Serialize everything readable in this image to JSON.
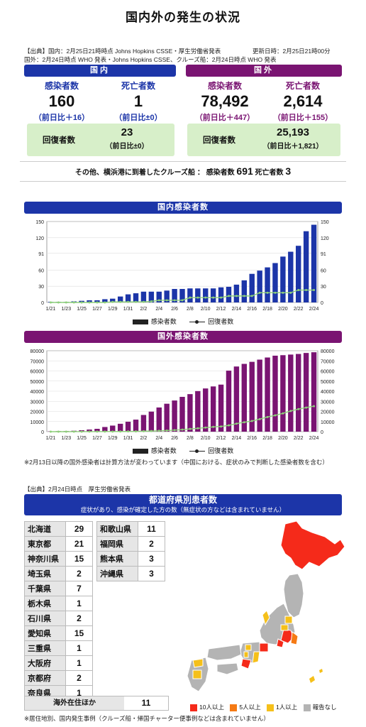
{
  "title": "国内外の発生の状況",
  "source_line1": "【出典】国内：2月25日21時時点 Johns Hopkins CSSE・厚生労働省発表",
  "updated": "更新日時：2月25日21時00分",
  "source_line2": "国外：2月24日時点 WHO 発表・Johns Hopkins CSSE、クルーズ船：2月24日時点 WHO 発表",
  "domestic": {
    "header": "国内",
    "cases_label": "感染者数",
    "cases": "160",
    "cases_diff": "（前日比＋16）",
    "deaths_label": "死亡者数",
    "deaths": "1",
    "deaths_diff": "（前日比±0）",
    "recovered_label": "回復者数",
    "recovered": "23",
    "recovered_diff": "（前日比±0）"
  },
  "overseas": {
    "header": "国外",
    "cases_label": "感染者数",
    "cases": "78,492",
    "cases_diff": "（前日比＋447）",
    "deaths_label": "死亡者数",
    "deaths": "2,614",
    "deaths_diff": "（前日比＋155）",
    "recovered_label": "回復者数",
    "recovered": "25,193",
    "recovered_diff": "（前日比＋1,821）"
  },
  "cruise": {
    "text": "その他、横浜港に到着したクルーズ船 ： 感染者数",
    "cases": "691",
    "deaths_label": "死亡者数",
    "deaths": "3"
  },
  "colors": {
    "blue": "#1c35a8",
    "purple": "#7a1472",
    "recovered_line": "#8ed07a",
    "map_10plus": "#f52a1a",
    "map_5plus": "#f57a14",
    "map_1plus": "#f5c01a",
    "map_none": "#b4b4b4"
  },
  "chart_legend": {
    "cases": "感染者数",
    "recovered": "回復者数"
  },
  "chart_data": [
    {
      "type": "bar",
      "title": "国内感染者数",
      "categories": [
        "1/21",
        "1/22",
        "1/23",
        "1/24",
        "1/25",
        "1/26",
        "1/27",
        "1/28",
        "1/29",
        "1/30",
        "1/31",
        "2/1",
        "2/2",
        "2/3",
        "2/4",
        "2/5",
        "2/6",
        "2/7",
        "2/8",
        "2/9",
        "2/10",
        "2/11",
        "2/12",
        "2/13",
        "2/14",
        "2/15",
        "2/16",
        "2/17",
        "2/18",
        "2/19",
        "2/20",
        "2/21",
        "2/22",
        "2/23",
        "2/24"
      ],
      "tick_labels": [
        "1/21",
        "1/23",
        "1/25",
        "1/27",
        "1/29",
        "1/31",
        "2/2",
        "2/4",
        "2/6",
        "2/8",
        "2/10",
        "2/12",
        "2/14",
        "2/16",
        "2/18",
        "2/20",
        "2/22",
        "2/24"
      ],
      "series": [
        {
          "name": "感染者数",
          "type": "bar",
          "values": [
            1,
            1,
            1,
            2,
            3,
            4,
            4,
            6,
            7,
            11,
            15,
            17,
            20,
            20,
            20,
            22,
            25,
            25,
            26,
            26,
            26,
            26,
            28,
            29,
            33,
            41,
            53,
            59,
            65,
            73,
            85,
            94,
            105,
            132,
            144
          ]
        },
        {
          "name": "回復者数",
          "type": "line",
          "values": [
            0,
            0,
            0,
            0,
            0,
            0,
            0,
            0,
            1,
            1,
            1,
            1,
            1,
            2,
            4,
            4,
            4,
            4,
            9,
            9,
            9,
            9,
            9,
            12,
            12,
            12,
            12,
            18,
            18,
            18,
            18,
            18,
            23,
            23,
            23
          ]
        }
      ],
      "yticks": [
        0,
        30,
        60,
        91,
        120,
        150
      ],
      "ylim": [
        0,
        150
      ]
    },
    {
      "type": "bar",
      "title": "国外感染者数",
      "categories": [
        "1/21",
        "1/22",
        "1/23",
        "1/24",
        "1/25",
        "1/26",
        "1/27",
        "1/28",
        "1/29",
        "1/30",
        "1/31",
        "2/1",
        "2/2",
        "2/3",
        "2/4",
        "2/5",
        "2/6",
        "2/7",
        "2/8",
        "2/9",
        "2/10",
        "2/11",
        "2/12",
        "2/13",
        "2/14",
        "2/15",
        "2/16",
        "2/17",
        "2/18",
        "2/19",
        "2/20",
        "2/21",
        "2/22",
        "2/23",
        "2/24"
      ],
      "tick_labels": [
        "1/21",
        "1/23",
        "1/25",
        "1/27",
        "1/29",
        "1/31",
        "2/2",
        "2/4",
        "2/6",
        "2/8",
        "2/10",
        "2/12",
        "2/14",
        "2/16",
        "2/18",
        "2/20",
        "2/22",
        "2/24"
      ],
      "series": [
        {
          "name": "感染者数",
          "type": "bar",
          "values": [
            300,
            550,
            600,
            900,
            1400,
            2100,
            2800,
            4600,
            6000,
            7800,
            9800,
            11900,
            16500,
            19800,
            23900,
            27600,
            30800,
            34400,
            37100,
            40100,
            42700,
            44700,
            46500,
            60300,
            64400,
            67000,
            69000,
            71200,
            73300,
            75100,
            75600,
            76200,
            76800,
            77800,
            78500
          ]
        },
        {
          "name": "回復者数",
          "type": "line",
          "values": [
            0,
            0,
            0,
            30,
            40,
            50,
            60,
            100,
            130,
            170,
            220,
            280,
            470,
            620,
            860,
            1100,
            1500,
            2000,
            2700,
            3300,
            4000,
            4700,
            5100,
            6200,
            7900,
            9300,
            10500,
            12400,
            14500,
            16100,
            18100,
            20400,
            22300,
            23800,
            25200
          ]
        }
      ],
      "yticks": [
        0,
        10000,
        20000,
        30000,
        40000,
        50000,
        60000,
        70000,
        80000
      ],
      "ylim": [
        0,
        80000
      ]
    }
  ],
  "note_overseas": "※2月13日以降の国外感染者は計算方法が変わっています（中国における、症状のみで判断した感染者数を含む）",
  "pref_source": "【出典】2月24日時点　厚生労働省発表",
  "pref_title": "都道府県別患者数",
  "pref_subtitle": "症状があり、感染が確定した方の数（無症状の方などは含まれていません）",
  "pref_left": [
    {
      "name": "北海道",
      "value": "29"
    },
    {
      "name": "東京都",
      "value": "21"
    },
    {
      "name": "神奈川県",
      "value": "15"
    },
    {
      "name": "埼玉県",
      "value": "2"
    },
    {
      "name": "千葉県",
      "value": "7"
    },
    {
      "name": "栃木県",
      "value": "1"
    },
    {
      "name": "石川県",
      "value": "2"
    },
    {
      "name": "愛知県",
      "value": "15"
    },
    {
      "name": "三重県",
      "value": "1"
    },
    {
      "name": "大阪府",
      "value": "1"
    },
    {
      "name": "京都府",
      "value": "2"
    },
    {
      "name": "奈良県",
      "value": "1"
    }
  ],
  "pref_right": [
    {
      "name": "和歌山県",
      "value": "11"
    },
    {
      "name": "福岡県",
      "value": "2"
    },
    {
      "name": "熊本県",
      "value": "3"
    },
    {
      "name": "沖縄県",
      "value": "3"
    }
  ],
  "overseas_stay": {
    "name": "海外在住ほか",
    "value": "11"
  },
  "map_legend": {
    "c10": "10人以上",
    "c5": "5人以上",
    "c1": "1人以上",
    "none": "報告なし"
  },
  "footnote": "※居住地別、国内発生事例（クルーズ船・帰国チャーター便事例などは含まれていません）"
}
